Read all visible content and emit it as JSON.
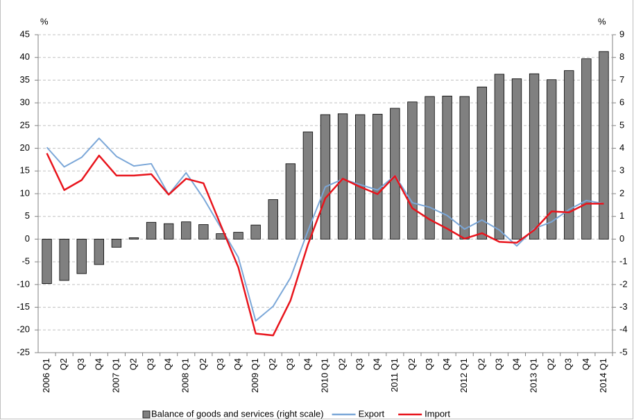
{
  "chart_data": {
    "type": "combo",
    "y_unit_label": "%",
    "y2_unit_label": "%",
    "categories": [
      "2006 Q1",
      "Q2",
      "Q3",
      "Q4",
      "2007 Q1",
      "Q2",
      "Q3",
      "Q4",
      "2008 Q1",
      "Q2",
      "Q3",
      "Q4",
      "2009 Q1",
      "Q2",
      "Q3",
      "Q4",
      "2010 Q1",
      "Q2",
      "Q3",
      "Q4",
      "2011 Q1",
      "Q2",
      "Q3",
      "Q4",
      "2012 Q1",
      "Q2",
      "Q3",
      "Q4",
      "2013 Q1",
      "Q2",
      "Q3",
      "Q4",
      "2014 Q1"
    ],
    "series": [
      {
        "name": "Balance of goods and services (right scale)",
        "type": "bar",
        "axis": "y2",
        "color": "#808080",
        "values": [
          -1.96,
          -1.82,
          -1.52,
          -1.12,
          -0.36,
          0.06,
          0.74,
          0.68,
          0.76,
          0.64,
          0.24,
          0.3,
          0.62,
          1.74,
          3.32,
          4.72,
          5.48,
          5.52,
          5.48,
          5.5,
          5.76,
          6.04,
          6.28,
          6.3,
          6.28,
          6.7,
          7.26,
          7.06,
          7.28,
          7.02,
          7.42,
          7.94,
          8.26
        ]
      },
      {
        "name": "Export",
        "type": "line",
        "color": "#7ba7d8",
        "values": [
          20.2,
          15.9,
          18.0,
          22.2,
          18.2,
          16.1,
          16.6,
          9.8,
          14.6,
          9.0,
          2.5,
          -4.0,
          -18.0,
          -14.8,
          -8.5,
          1.8,
          11.5,
          13.2,
          12.0,
          10.8,
          14.0,
          8.0,
          7.0,
          5.2,
          2.2,
          4.2,
          2.0,
          -1.5,
          2.3,
          3.8,
          6.5,
          8.5,
          7.8
        ]
      },
      {
        "name": "Import",
        "type": "line",
        "color": "#e8141c",
        "values": [
          18.9,
          10.8,
          13.0,
          18.4,
          14.0,
          14.0,
          14.3,
          9.8,
          13.3,
          12.3,
          3.0,
          -6.2,
          -20.8,
          -21.2,
          -13.5,
          -1.2,
          9.0,
          13.3,
          11.5,
          9.9,
          13.9,
          6.8,
          4.3,
          2.3,
          0.1,
          1.3,
          -0.6,
          -0.8,
          2.0,
          6.1,
          5.9,
          7.8,
          7.8
        ]
      }
    ],
    "ylim": [
      -25,
      45
    ],
    "yticks": [
      -25,
      -20,
      -15,
      -10,
      -5,
      0,
      5,
      10,
      15,
      20,
      25,
      30,
      35,
      40,
      45
    ],
    "y2lim": [
      -5,
      9
    ],
    "y2ticks": [
      -5,
      -4,
      -3,
      -2,
      -1,
      0,
      1,
      2,
      3,
      4,
      5,
      6,
      7,
      8,
      9
    ],
    "grid": true
  }
}
